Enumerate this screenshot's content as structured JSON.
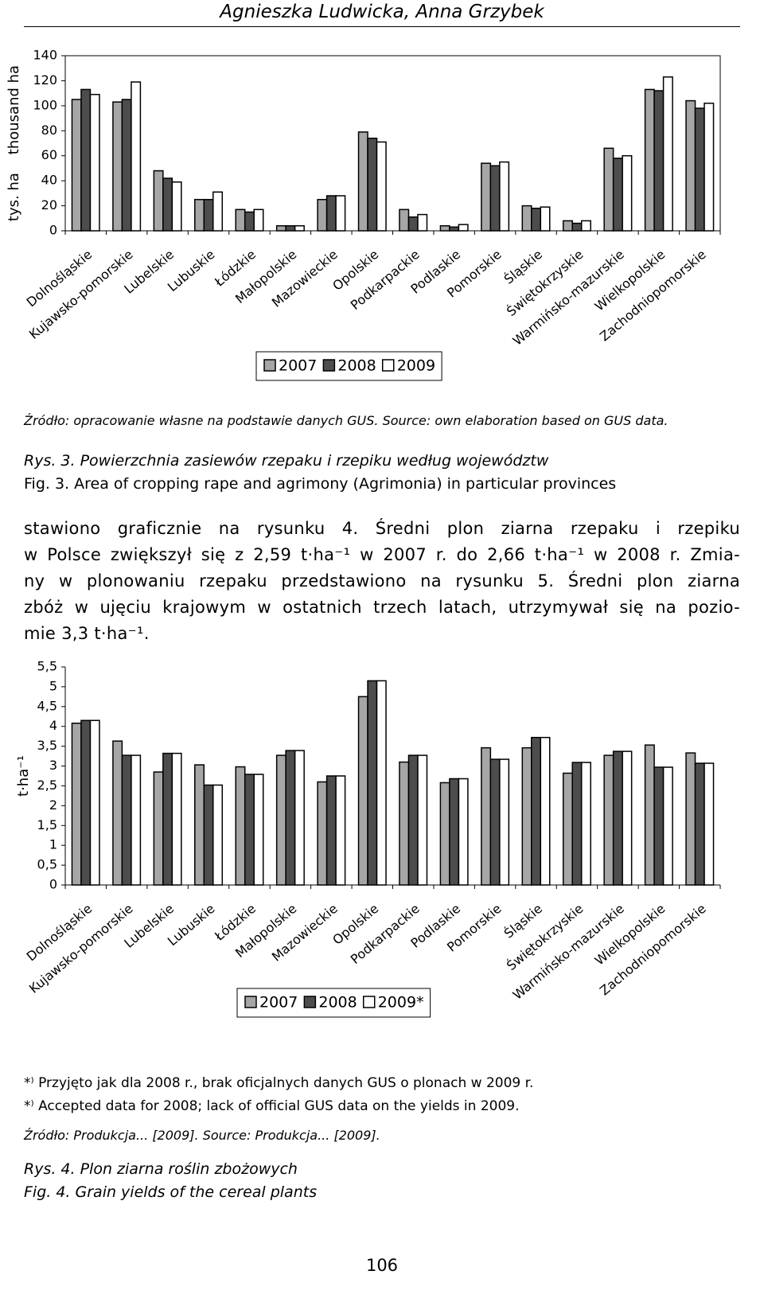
{
  "header": {
    "authors": "Agnieszka Ludwicka, Anna Grzybek"
  },
  "chart_data": [
    {
      "type": "bar",
      "ylabel": "tys. ha    thousand ha",
      "frame": true,
      "categories": [
        "Dolnośląskie",
        "Kujawsko-pomorskie",
        "Lubelskie",
        "Lubuskie",
        "Łódzkie",
        "Małopolskie",
        "Mazowieckie",
        "Opolskie",
        "Podkarpackie",
        "Podlaskie",
        "Pomorskie",
        "Śląskie",
        "Świętokrzyskie",
        "Warmińsko-mazurskie",
        "Wielkopolskie",
        "Zachodniopomorskie"
      ],
      "series": [
        {
          "name": "2007",
          "color": "#a6a6a6",
          "values": [
            105,
            103,
            48,
            25,
            17,
            4,
            25,
            79,
            17,
            4,
            54,
            20,
            8,
            66,
            113,
            104
          ]
        },
        {
          "name": "2008",
          "color": "#4d4d4d",
          "values": [
            113,
            105,
            42,
            25,
            15,
            4,
            28,
            74,
            11,
            3,
            52,
            18,
            6,
            58,
            112,
            98
          ]
        },
        {
          "name": "2009",
          "color": "#ffffff",
          "values": [
            109,
            119,
            39,
            31,
            17,
            4,
            28,
            71,
            13,
            5,
            55,
            19,
            8,
            60,
            123,
            102
          ]
        }
      ],
      "ylim": [
        0,
        140
      ],
      "yticks": [
        0,
        20,
        40,
        60,
        80,
        100,
        120,
        140
      ]
    },
    {
      "type": "bar",
      "ylabel": "t·ha⁻¹",
      "frame": false,
      "categories": [
        "Dolnośląskie",
        "Kujawsko-pomorskie",
        "Lubelskie",
        "Lubuskie",
        "Łódzkie",
        "Małopolskie",
        "Mazowieckie",
        "Opolskie",
        "Podkarpackie",
        "Podlaskie",
        "Pomorskie",
        "Śląskie",
        "Świętokrzyskie",
        "Warmińsko-mazurskie",
        "Wielkopolskie",
        "Zachodniopomorskie"
      ],
      "series": [
        {
          "name": "2007",
          "color": "#a6a6a6",
          "values": [
            4.08,
            3.63,
            2.85,
            3.03,
            2.98,
            3.27,
            2.6,
            4.75,
            3.1,
            2.58,
            3.46,
            3.46,
            2.82,
            3.27,
            3.53,
            3.33
          ]
        },
        {
          "name": "2008",
          "color": "#4d4d4d",
          "values": [
            4.15,
            3.27,
            3.32,
            2.52,
            2.79,
            3.39,
            2.75,
            5.15,
            3.27,
            2.68,
            3.17,
            3.72,
            3.09,
            3.37,
            2.97,
            3.07
          ]
        },
        {
          "name": "2009*",
          "color": "#ffffff",
          "values": [
            4.15,
            3.27,
            3.32,
            2.52,
            2.79,
            3.39,
            2.75,
            5.15,
            3.27,
            2.68,
            3.17,
            3.72,
            3.09,
            3.37,
            2.97,
            3.07
          ]
        }
      ],
      "ylim": [
        0,
        5.5
      ],
      "yticks": [
        0,
        {
          "value": 0.5,
          "label": "0,5"
        },
        1,
        {
          "value": 1.5,
          "label": "1,5"
        },
        2,
        {
          "value": 2.5,
          "label": "2,5"
        },
        3,
        {
          "value": 3.5,
          "label": "3,5"
        },
        4,
        {
          "value": 4.5,
          "label": "4,5"
        },
        5,
        {
          "value": 5.5,
          "label": "5,5"
        }
      ]
    }
  ],
  "figure3": {
    "source": "Źródło: opracowanie własne na podstawie danych GUS. Source: own elaboration based on GUS data.",
    "caption_pl": "Rys. 3. Powierzchnia zasiewów rzepaku i rzepiku według województw",
    "caption_en": "Fig. 3. Area of cropping rape and agrimony (Agrimonia) in particular provinces"
  },
  "paragraph": [
    "stawiono graficznie na rysunku 4. Średni plon ziarna rzepaku i rzepiku",
    "w Polsce zwiększył się z 2,59 t·ha⁻¹ w 2007 r. do 2,66 t·ha⁻¹ w 2008 r. Zmia-",
    "ny w plonowaniu rzepaku przedstawiono na rysunku 5. Średni plon ziarna",
    "zbóż w ujęciu krajowym w ostatnich trzech latach, utrzymywał się na pozio-",
    "mie 3,3 t·ha⁻¹."
  ],
  "figure4": {
    "note_pl": "*⁾ Przyjęto jak dla 2008 r., brak oficjalnych danych GUS o plonach w 2009 r.",
    "note_en": "*⁾ Accepted data for 2008; lack of official GUS data on the yields in 2009.",
    "source": "Źródło: Produkcja... [2009]. Source: Produkcja... [2009].",
    "caption_pl": "Rys. 4. Plon ziarna roślin zbożowych",
    "caption_en": "Fig. 4. Grain yields of the cereal plants"
  },
  "page_number": "106"
}
